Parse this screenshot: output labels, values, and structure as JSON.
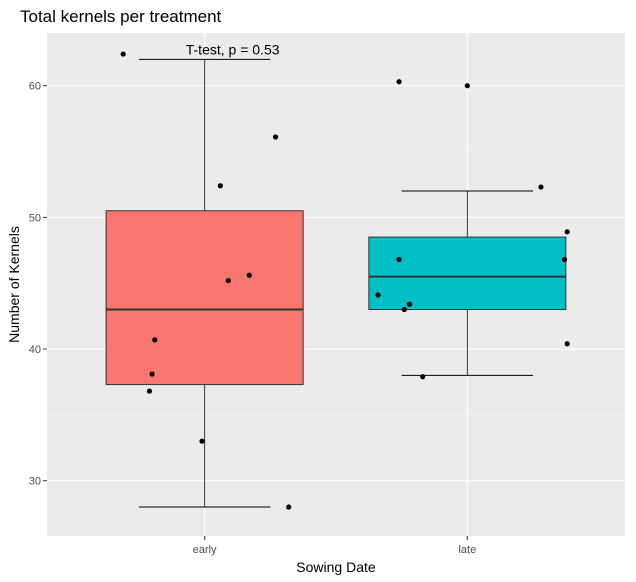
{
  "chart_data": {
    "type": "box",
    "title": "Total kernels per treatment",
    "xlabel": "Sowing Date",
    "ylabel": "Number of Kernels",
    "ylim": [
      25.8,
      64.0
    ],
    "yticks": [
      30,
      40,
      50,
      60
    ],
    "categories": [
      "early",
      "late"
    ],
    "annotation": "T-test, p = 0.53",
    "grid": true,
    "legend": "none",
    "boxes": [
      {
        "category": "early",
        "whisker_low": 28.0,
        "q1": 37.3,
        "median": 43.0,
        "q3": 50.5,
        "whisker_high": 62.0,
        "color": "#F8766D"
      },
      {
        "category": "late",
        "whisker_low": 38.0,
        "q1": 43.0,
        "median": 45.5,
        "q3": 48.5,
        "whisker_high": 52.0,
        "color": "#00BFC4"
      }
    ],
    "points": [
      {
        "category": "early",
        "jitter": -0.31,
        "y": 62.4
      },
      {
        "category": "early",
        "jitter": 0.27,
        "y": 56.1
      },
      {
        "category": "early",
        "jitter": 0.06,
        "y": 52.4
      },
      {
        "category": "early",
        "jitter": 0.17,
        "y": 45.6
      },
      {
        "category": "early",
        "jitter": 0.09,
        "y": 45.2
      },
      {
        "category": "early",
        "jitter": -0.19,
        "y": 40.7
      },
      {
        "category": "early",
        "jitter": -0.2,
        "y": 38.1
      },
      {
        "category": "early",
        "jitter": -0.21,
        "y": 36.8
      },
      {
        "category": "early",
        "jitter": -0.01,
        "y": 33.0
      },
      {
        "category": "early",
        "jitter": 0.32,
        "y": 28.0
      },
      {
        "category": "late",
        "jitter": -0.26,
        "y": 60.3
      },
      {
        "category": "late",
        "jitter": 0.0,
        "y": 60.0
      },
      {
        "category": "late",
        "jitter": 0.28,
        "y": 52.3
      },
      {
        "category": "late",
        "jitter": 0.38,
        "y": 48.9
      },
      {
        "category": "late",
        "jitter": 0.37,
        "y": 46.8
      },
      {
        "category": "late",
        "jitter": -0.26,
        "y": 46.8
      },
      {
        "category": "late",
        "jitter": -0.34,
        "y": 44.1
      },
      {
        "category": "late",
        "jitter": -0.22,
        "y": 43.4
      },
      {
        "category": "late",
        "jitter": -0.24,
        "y": 43.0
      },
      {
        "category": "late",
        "jitter": 0.38,
        "y": 40.4
      },
      {
        "category": "late",
        "jitter": -0.17,
        "y": 37.9
      }
    ]
  }
}
